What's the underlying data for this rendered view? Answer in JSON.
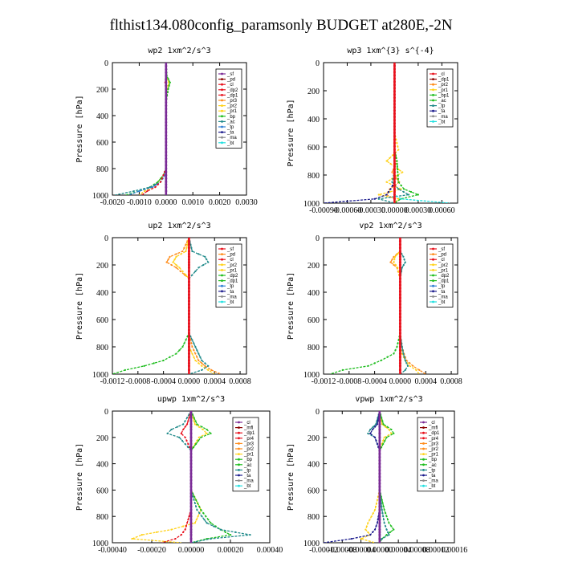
{
  "figure": {
    "title": "flthist134.080config_paramsonly  BUDGET at280E,-2N",
    "ylabel": "Pressure [hPa]",
    "yticks": [
      "0",
      "200",
      "400",
      "600",
      "800",
      "1000"
    ]
  },
  "colors": {
    "purple": "#7a2a96",
    "dark_red": "#8b0000",
    "red": "#e8101c",
    "orange": "#ff8c1a",
    "yellow": "#ffd21a",
    "green": "#1ebd1e",
    "teal": "#1f8a8a",
    "blue": "#2f7fd4",
    "navy": "#1a1a8c",
    "gray": "#8c8c8c",
    "cyan": "#22e0e0"
  },
  "chart_data": [
    {
      "type": "line",
      "title": "wp2  1xm^2/s^3",
      "ylabel": "Pressure [hPa]",
      "xlim": [
        -0.002,
        0.003
      ],
      "ylim": [
        1000,
        0
      ],
      "xticks": [
        "-0.0020",
        "-0.0010",
        "0.0000",
        "0.0010",
        "0.0020",
        "0.0030"
      ],
      "legend_position": "top-right",
      "legend": [
        "_sf",
        "_pd",
        "_cl",
        "_dp2",
        "_dp1",
        "_pr3",
        "_pr2",
        "_pr1",
        "_bp",
        "_ac",
        "_tp",
        "_ta",
        "_ma",
        "_bt"
      ],
      "legend_colors": [
        "purple",
        "dark_red",
        "red",
        "red",
        "red",
        "orange",
        "yellow",
        "yellow",
        "green",
        "teal",
        "blue",
        "navy",
        "gray",
        "cyan"
      ],
      "y": [
        0,
        100,
        150,
        200,
        300,
        500,
        700,
        800,
        850,
        900,
        940,
        970,
        1000
      ],
      "series": [
        {
          "name": "_pr2",
          "color": "yellow",
          "values": [
            0,
            0,
            0.0001,
            5e-05,
            0,
            0,
            0,
            0,
            -0.0001,
            -0.0003,
            -0.0005,
            -0.0008,
            -0.001
          ]
        },
        {
          "name": "_bp",
          "color": "green",
          "values": [
            0,
            3e-05,
            0.00015,
            8e-05,
            0,
            0,
            0,
            0,
            -0.0001,
            -0.0003,
            -0.0006,
            -0.001,
            -0.0015
          ]
        },
        {
          "name": "_ac",
          "color": "teal",
          "values": [
            0,
            0,
            0,
            0,
            0,
            0,
            0,
            0,
            -5e-05,
            -0.0002,
            -0.0006,
            -0.0012,
            -0.0019
          ]
        },
        {
          "name": "_tp",
          "color": "blue",
          "values": [
            0,
            0,
            0,
            0,
            0,
            0,
            0,
            0,
            -5e-05,
            -0.0002,
            -0.0005,
            -0.001,
            -0.0014
          ]
        },
        {
          "name": "_dp1",
          "color": "red",
          "values": [
            0,
            0,
            -3e-05,
            0,
            0,
            0,
            0,
            0,
            -0.0001,
            -0.0002,
            -0.0004,
            -0.0007,
            -0.0009
          ]
        },
        {
          "name": "_sf",
          "color": "purple",
          "values": [
            0,
            0,
            0,
            0,
            0,
            0,
            0,
            0,
            0,
            0,
            0,
            0,
            0
          ]
        }
      ]
    },
    {
      "type": "line",
      "title": "wp3  1xm^{3} s^{-4}",
      "ylabel": "Pressure [hPa]",
      "xlim": [
        -0.0009,
        0.0008
      ],
      "ylim": [
        1000,
        0
      ],
      "xticks": [
        "-0.00090",
        "-0.00060",
        "-0.00030",
        "0.00000",
        "0.00030",
        "0.00060"
      ],
      "legend_position": "top-right",
      "legend": [
        "_cl",
        "_dp1",
        "_pr2",
        "_pr1",
        "_bp1",
        "_ac",
        "_tp",
        "_ta",
        "_ma",
        "_bt"
      ],
      "legend_colors": [
        "red",
        "dark_red",
        "orange",
        "yellow",
        "green",
        "green",
        "teal",
        "navy",
        "gray",
        "cyan"
      ],
      "y": [
        0,
        500,
        620,
        700,
        780,
        850,
        900,
        940,
        970,
        1000
      ],
      "series": [
        {
          "name": "_pr1",
          "color": "yellow",
          "values": [
            0,
            0,
            5e-05,
            -0.0001,
            0.0001,
            -0.0001,
            8e-05,
            -0.0002,
            5e-05,
            0
          ]
        },
        {
          "name": "_pr2",
          "color": "orange",
          "values": [
            0,
            0,
            0,
            3e-05,
            -3e-05,
            6e-05,
            -6e-05,
            -0.0001,
            0,
            0
          ]
        },
        {
          "name": "_ac",
          "color": "green",
          "values": [
            0,
            0,
            0,
            3e-05,
            4e-05,
            5e-05,
            0.00012,
            0.0003,
            8e-05,
            0
          ]
        },
        {
          "name": "_tp",
          "color": "teal",
          "values": [
            0,
            0,
            0,
            0,
            0,
            -3e-05,
            5e-05,
            0.00018,
            -0.0002,
            0
          ]
        },
        {
          "name": "_ta",
          "color": "navy",
          "values": [
            0,
            0,
            0,
            0,
            0,
            0,
            -5e-05,
            -0.0001,
            -0.00025,
            -0.0009
          ]
        },
        {
          "name": "_bt",
          "color": "cyan",
          "values": [
            0,
            0,
            0,
            0,
            0,
            0,
            0,
            0,
            8e-05,
            0.0007
          ]
        },
        {
          "name": "_cl",
          "color": "red",
          "values": [
            0,
            0,
            0,
            0,
            0,
            0,
            0,
            0,
            0,
            0
          ]
        }
      ]
    },
    {
      "type": "line",
      "title": "up2  1xm^2/s^3",
      "ylabel": "Pressure [hPa]",
      "xlim": [
        -0.0012,
        0.0009
      ],
      "ylim": [
        1000,
        0
      ],
      "xticks": [
        "-0.0012",
        "-0.0008",
        "-0.0004",
        "0.0000",
        "0.0004",
        "0.0008"
      ],
      "legend_position": "top-right",
      "legend": [
        "_sf",
        "_pd",
        "_cl",
        "_pr2",
        "_pr1",
        "_dp2",
        "_dp1",
        "_tp",
        "_ta",
        "_ma",
        "_bt"
      ],
      "legend_colors": [
        "red",
        "orange",
        "red",
        "yellow",
        "yellow",
        "green",
        "green",
        "blue",
        "navy",
        "gray",
        "cyan"
      ],
      "y": [
        0,
        100,
        140,
        180,
        220,
        300,
        700,
        800,
        850,
        900,
        940,
        970,
        1000
      ],
      "series": [
        {
          "name": "_pr2",
          "color": "orange",
          "values": [
            0,
            -0.0001,
            -0.0003,
            -0.00035,
            -0.0002,
            0,
            0,
            5e-05,
            0.0001,
            0.00015,
            0.00025,
            0.00035,
            0.0005
          ]
        },
        {
          "name": "_pr1",
          "color": "yellow",
          "values": [
            0,
            -5e-05,
            -0.0002,
            -0.00025,
            -0.00015,
            0,
            0,
            0,
            5e-05,
            0.0001,
            0.0002,
            0.0003,
            0.0004
          ]
        },
        {
          "name": "_tp",
          "color": "teal",
          "values": [
            0,
            5e-05,
            0.00025,
            0.0003,
            0.00015,
            0,
            0,
            0.0001,
            0.00015,
            0.0002,
            0.0003,
            0.0002,
            0
          ]
        },
        {
          "name": "_dp1",
          "color": "green",
          "values": [
            0,
            0,
            0,
            0,
            0,
            0,
            0,
            -0.0001,
            -0.0002,
            -0.0004,
            -0.0007,
            -0.001,
            -0.0012
          ]
        },
        {
          "name": "_sf",
          "color": "red",
          "values": [
            0,
            0,
            0,
            0,
            0,
            0,
            0,
            0,
            0,
            0,
            0,
            0,
            0
          ]
        }
      ]
    },
    {
      "type": "line",
      "title": "vp2  1xm^2/s^3",
      "ylabel": "Pressure [hPa]",
      "xlim": [
        -0.0012,
        0.0009
      ],
      "ylim": [
        1000,
        0
      ],
      "xticks": [
        "-0.0012",
        "-0.0008",
        "-0.0004",
        "0.0000",
        "0.0004",
        "0.0008"
      ],
      "legend_position": "top-right",
      "legend": [
        "_sf",
        "_pd",
        "_cl",
        "_pr2",
        "_pr1",
        "_dp2",
        "_dp1",
        "_tp",
        "_ta",
        "_ma",
        "_bt"
      ],
      "legend_colors": [
        "red",
        "orange",
        "red",
        "yellow",
        "yellow",
        "green",
        "green",
        "blue",
        "navy",
        "gray",
        "cyan"
      ],
      "y": [
        0,
        100,
        140,
        180,
        220,
        300,
        700,
        800,
        850,
        900,
        940,
        970,
        1000
      ],
      "series": [
        {
          "name": "_pr2",
          "color": "orange",
          "values": [
            0,
            0,
            -0.0001,
            -0.00015,
            -5e-05,
            0,
            0,
            3e-05,
            6e-05,
            0.0001,
            0.0002,
            0.0003,
            0.0004
          ]
        },
        {
          "name": "_pr1",
          "color": "yellow",
          "values": [
            0,
            0,
            -8e-05,
            -0.0001,
            -4e-05,
            0,
            0,
            0,
            3e-05,
            8e-05,
            0.00015,
            0.00025,
            0.0003
          ]
        },
        {
          "name": "_tp",
          "color": "teal",
          "values": [
            0,
            0,
            5e-05,
            8e-05,
            3e-05,
            0,
            0,
            3e-05,
            5e-05,
            8e-05,
            0.00012,
            8e-05,
            0
          ]
        },
        {
          "name": "_dp1",
          "color": "green",
          "values": [
            0,
            0,
            0,
            0,
            0,
            0,
            0,
            -5e-05,
            -0.0001,
            -0.0003,
            -0.0005,
            -0.0009,
            -0.0011
          ]
        },
        {
          "name": "_sf",
          "color": "red",
          "values": [
            0,
            0,
            0,
            0,
            0,
            0,
            0,
            0,
            0,
            0,
            0,
            0,
            0
          ]
        }
      ]
    },
    {
      "type": "line",
      "title": "upwp  1xm^2/s^3",
      "ylabel": "Pressure [hPa]",
      "xlim": [
        -0.0004,
        0.0004
      ],
      "ylim": [
        1000,
        0
      ],
      "xticks": [
        "-0.00040",
        "-0.00020",
        "0.00000",
        "0.00020",
        "0.00040"
      ],
      "legend_position": "top-right",
      "legend": [
        "_cl",
        "_mfl",
        "_dp1",
        "_pr4",
        "_pr3",
        "_pr2",
        "_pr1",
        "_bp",
        "_ac",
        "_tp",
        "_ta",
        "_ma",
        "_bt"
      ],
      "legend_colors": [
        "purple",
        "dark_red",
        "red",
        "red",
        "orange",
        "orange",
        "yellow",
        "green",
        "green",
        "teal",
        "navy",
        "gray",
        "cyan"
      ],
      "y": [
        0,
        100,
        140,
        170,
        200,
        300,
        600,
        750,
        850,
        900,
        940,
        970,
        1000
      ],
      "series": [
        {
          "name": "_pr1",
          "color": "yellow",
          "values": [
            0,
            2e-05,
            6e-05,
            8e-05,
            4e-05,
            0,
            0,
            5e-05,
            2e-05,
            -0.0001,
            -0.00025,
            -0.0003,
            -5e-05
          ]
        },
        {
          "name": "_bp",
          "color": "green",
          "values": [
            0,
            3e-05,
            8e-05,
            0.0001,
            5e-05,
            0,
            0,
            5e-05,
            0.0001,
            0.00015,
            0.0002,
            8e-05,
            0
          ]
        },
        {
          "name": "_tp",
          "color": "teal",
          "values": [
            0,
            -4e-05,
            -0.0001,
            -0.00012,
            -6e-05,
            0,
            0,
            3e-05,
            8e-05,
            0.00015,
            0.0003,
            0.0001,
            0
          ]
        },
        {
          "name": "_dp1",
          "color": "red",
          "values": [
            0,
            -2e-05,
            -4e-05,
            -5e-05,
            -3e-05,
            0,
            0,
            0,
            -2e-05,
            -3e-05,
            -5e-05,
            -8e-05,
            -0.00015
          ]
        },
        {
          "name": "_cl",
          "color": "purple",
          "values": [
            0,
            0,
            0,
            0,
            0,
            0,
            0,
            0,
            0,
            0,
            0,
            0,
            0
          ]
        }
      ]
    },
    {
      "type": "line",
      "title": "vpwp  1xm^2/s^3",
      "ylabel": "Pressure [hPa]",
      "xlim": [
        -0.00012,
        0.00016
      ],
      "ylim": [
        1000,
        0
      ],
      "xticks": [
        "-0.00012",
        "-0.00008",
        "-0.00004",
        "0.00000",
        "0.00004",
        "0.00008",
        "0.00012",
        "0.00016"
      ],
      "legend_position": "top-right",
      "legend": [
        "_cl",
        "_mfl",
        "_dp1",
        "_pr4",
        "_pr3",
        "_pr2",
        "_pr1",
        "_bp",
        "_ac",
        "_tp",
        "_ta",
        "_ma",
        "_bt"
      ],
      "legend_colors": [
        "purple",
        "dark_red",
        "red",
        "red",
        "orange",
        "orange",
        "yellow",
        "green",
        "green",
        "teal",
        "navy",
        "gray",
        "cyan"
      ],
      "y": [
        0,
        100,
        140,
        170,
        200,
        300,
        600,
        750,
        850,
        900,
        940,
        970,
        1000
      ],
      "series": [
        {
          "name": "_pr1",
          "color": "yellow",
          "values": [
            0,
            5e-06,
            2e-05,
            2.5e-05,
            1e-05,
            0,
            0,
            -1e-05,
            -2.5e-05,
            -3e-05,
            -2e-05,
            -4e-05,
            -1e-05
          ]
        },
        {
          "name": "_bp",
          "color": "green",
          "values": [
            0,
            8e-06,
            2.5e-05,
            3e-05,
            1.5e-05,
            0,
            0,
            1e-05,
            2e-05,
            3e-05,
            1.5e-05,
            5e-06,
            0
          ]
        },
        {
          "name": "_tp",
          "color": "teal",
          "values": [
            0,
            -8e-06,
            -2e-05,
            -2.5e-05,
            -1e-05,
            0,
            0,
            5e-06,
            1e-05,
            1.5e-05,
            2e-05,
            5e-06,
            0
          ]
        },
        {
          "name": "_ta",
          "color": "navy",
          "values": [
            0,
            -5e-06,
            -1.5e-05,
            -2e-05,
            -1e-05,
            0,
            0,
            0,
            -5e-06,
            -1e-05,
            -2e-05,
            -6e-05,
            -0.00012
          ]
        },
        {
          "name": "_cl",
          "color": "purple",
          "values": [
            0,
            0,
            0,
            0,
            0,
            0,
            0,
            0,
            0,
            0,
            0,
            0,
            0
          ]
        }
      ]
    }
  ]
}
